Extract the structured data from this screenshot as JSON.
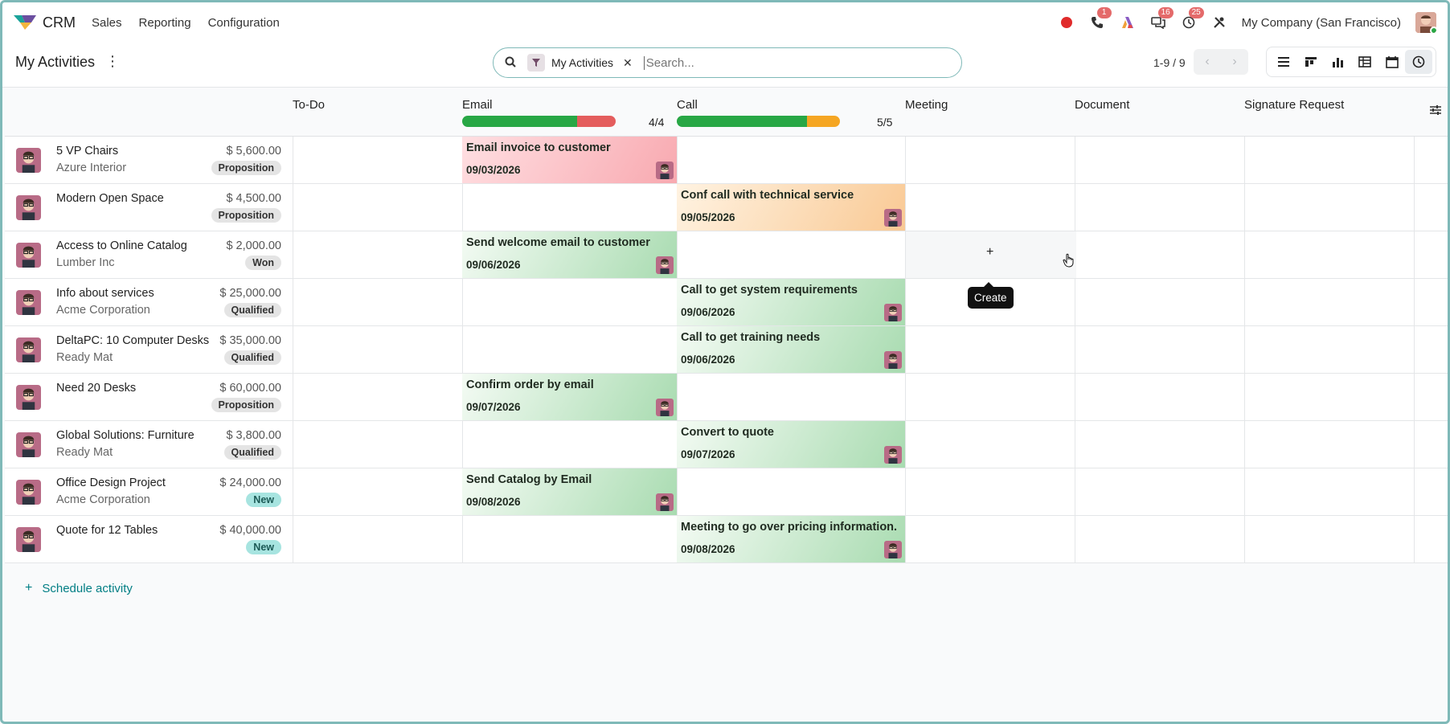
{
  "app": {
    "name": "CRM"
  },
  "menu": [
    "Sales",
    "Reporting",
    "Configuration"
  ],
  "systray": {
    "phone_count": "1",
    "messages_count": "16",
    "activities_count": "25",
    "company": "My Company (San Francisco)"
  },
  "control": {
    "title": "My Activities",
    "facet_label": "My Activities",
    "search_placeholder": "Search...",
    "pager": "1-9 / 9"
  },
  "columns": [
    {
      "key": "todo",
      "title": "To-Do"
    },
    {
      "key": "email",
      "title": "Email",
      "count": "4/4",
      "progress": {
        "green": 0.75,
        "red": 0.25,
        "orange": 0
      }
    },
    {
      "key": "call",
      "title": "Call",
      "count": "5/5",
      "progress": {
        "green": 0.8,
        "orange": 0.2,
        "red": 0
      }
    },
    {
      "key": "meeting",
      "title": "Meeting"
    },
    {
      "key": "document",
      "title": "Document"
    },
    {
      "key": "signature",
      "title": "Signature Request"
    }
  ],
  "rows": [
    {
      "name": "5 VP Chairs",
      "partner": "Azure Interior",
      "amount": "$ 5,600.00",
      "stage": "Proposition",
      "activity": {
        "col": "email",
        "title": "Email invoice to customer",
        "date": "09/03/2026",
        "state": "red"
      }
    },
    {
      "name": "Modern Open Space",
      "partner": "",
      "amount": "$ 4,500.00",
      "stage": "Proposition",
      "activity": {
        "col": "call",
        "title": "Conf call with technical service",
        "date": "09/05/2026",
        "state": "orange"
      }
    },
    {
      "name": "Access to Online Catalog",
      "partner": "Lumber Inc",
      "amount": "$ 2,000.00",
      "stage": "Won",
      "activity": {
        "col": "email",
        "title": "Send welcome email to customer",
        "date": "09/06/2026",
        "state": "green"
      }
    },
    {
      "name": "Info about services",
      "partner": "Acme Corporation",
      "amount": "$ 25,000.00",
      "stage": "Qualified",
      "activity": {
        "col": "call",
        "title": "Call to get system requirements",
        "date": "09/06/2026",
        "state": "green"
      }
    },
    {
      "name": "DeltaPC: 10 Computer Desks",
      "partner": "Ready Mat",
      "amount": "$ 35,000.00",
      "stage": "Qualified",
      "activity": {
        "col": "call",
        "title": "Call to get training needs",
        "date": "09/06/2026",
        "state": "green"
      }
    },
    {
      "name": "Need 20 Desks",
      "partner": "",
      "amount": "$ 60,000.00",
      "stage": "Proposition",
      "activity": {
        "col": "email",
        "title": "Confirm order by email",
        "date": "09/07/2026",
        "state": "green"
      }
    },
    {
      "name": "Global Solutions: Furniture",
      "partner": "Ready Mat",
      "amount": "$ 3,800.00",
      "stage": "Qualified",
      "activity": {
        "col": "call",
        "title": "Convert to quote",
        "date": "09/07/2026",
        "state": "green"
      }
    },
    {
      "name": "Office Design Project",
      "partner": "Acme Corporation",
      "amount": "$ 24,000.00",
      "stage": "New",
      "activity": {
        "col": "email",
        "title": "Send Catalog by Email",
        "date": "09/08/2026",
        "state": "green"
      }
    },
    {
      "name": "Quote for 12 Tables",
      "partner": "",
      "amount": "$ 40,000.00",
      "stage": "New",
      "activity": {
        "col": "call",
        "title": "Meeting to go over pricing information.",
        "date": "09/08/2026",
        "state": "green"
      }
    }
  ],
  "tooltip": "Create",
  "schedule_label": "Schedule activity",
  "colors": {
    "accent": "#017e84",
    "green": "#28a745",
    "red": "#e45d5d",
    "orange": "#f5a623"
  }
}
